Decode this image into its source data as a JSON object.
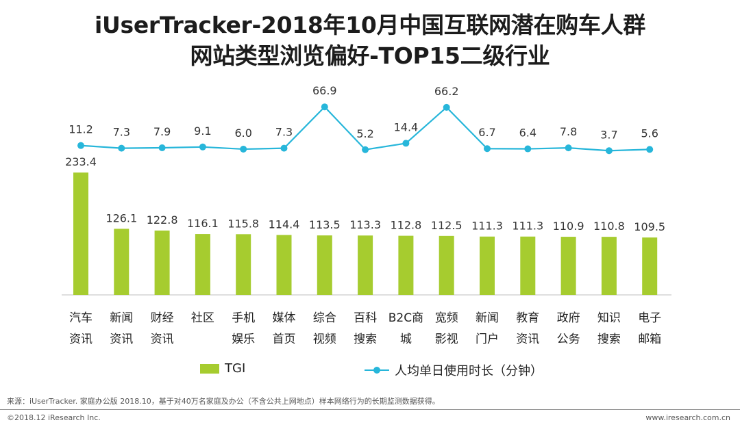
{
  "title": {
    "line1": "iUserTracker-2018年10月中国互联网潜在购车人群",
    "line2": "网站类型浏览偏好-TOP15二级行业"
  },
  "chart_data": {
    "type": "bar",
    "categories": [
      [
        "汽车",
        "资讯"
      ],
      [
        "新闻",
        "资讯"
      ],
      [
        "财经",
        "资讯"
      ],
      [
        "社区",
        ""
      ],
      [
        "手机",
        "娱乐"
      ],
      [
        "媒体",
        "首页"
      ],
      [
        "综合",
        "视频"
      ],
      [
        "百科",
        "搜索"
      ],
      [
        "B2C商",
        "城"
      ],
      [
        "宽频",
        "影视"
      ],
      [
        "新闻",
        "门户"
      ],
      [
        "教育",
        "资讯"
      ],
      [
        "政府",
        "公务"
      ],
      [
        "知识",
        "搜索"
      ],
      [
        "电子",
        "邮箱"
      ]
    ],
    "series": [
      {
        "name": "TGI",
        "type": "bar",
        "values": [
          233.4,
          126.1,
          122.8,
          116.1,
          115.8,
          114.4,
          113.5,
          113.3,
          112.8,
          112.5,
          111.3,
          111.3,
          110.9,
          110.8,
          109.5
        ],
        "labels": [
          "233.4",
          "126.1",
          "122.8",
          "116.1",
          "115.8",
          "114.4",
          "113.5",
          "113.3",
          "112.8",
          "112.5",
          "111.3",
          "111.3",
          "110.9",
          "110.8",
          "109.5"
        ],
        "color": "#a6cc2f"
      },
      {
        "name": "人均单日使用时长（分钟）",
        "type": "line",
        "values": [
          11.2,
          7.3,
          7.9,
          9.1,
          6.0,
          7.3,
          66.9,
          5.2,
          14.4,
          66.2,
          6.7,
          6.4,
          7.8,
          3.7,
          5.6
        ],
        "labels": [
          "11.2",
          "7.3",
          "7.9",
          "9.1",
          "6.0",
          "7.3",
          "66.9",
          "5.2",
          "14.4",
          "66.2",
          "6.7",
          "6.4",
          "7.8",
          "3.7",
          "5.6"
        ],
        "color": "#27b6da"
      }
    ],
    "legend_position": "bottom",
    "grid": false
  },
  "legend": {
    "bar_label": "TGI",
    "line_label": "人均单日使用时长（分钟）"
  },
  "source": "来源：iUserTracker. 家庭办公版 2018.10，基于对40万名家庭及办公（不含公共上网地点）样本网络行为的长期监测数据获得。",
  "footer": {
    "copyright": "©2018.12 iResearch Inc.",
    "website": "www.iresearch.com.cn"
  }
}
